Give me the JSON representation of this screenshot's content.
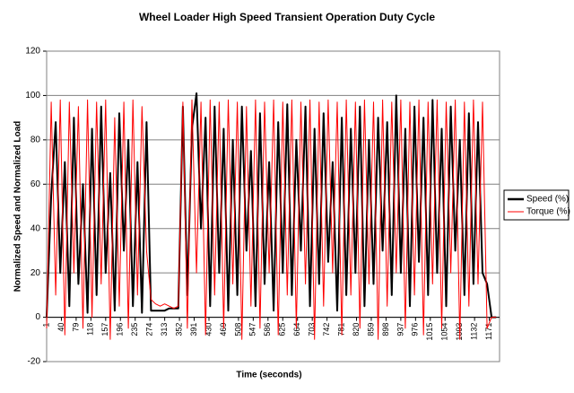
{
  "chart_data": {
    "type": "line",
    "title": "Wheel Loader High Speed Transient Operation Duty Cycle",
    "x_label": "Time (seconds)",
    "y_label": "Normalized Speed and Normalized Load",
    "x": [
      1,
      13,
      25,
      37,
      49,
      61,
      73,
      85,
      97,
      109,
      121,
      133,
      145,
      157,
      169,
      181,
      193,
      205,
      217,
      229,
      241,
      253,
      265,
      277,
      289,
      301,
      313,
      325,
      337,
      349,
      361,
      373,
      385,
      397,
      409,
      421,
      433,
      445,
      457,
      469,
      481,
      493,
      505,
      517,
      529,
      541,
      553,
      565,
      577,
      589,
      601,
      613,
      625,
      637,
      649,
      661,
      673,
      685,
      697,
      709,
      721,
      733,
      745,
      757,
      769,
      781,
      793,
      805,
      817,
      829,
      841,
      853,
      865,
      877,
      889,
      901,
      913,
      925,
      937,
      949,
      961,
      973,
      985,
      997,
      1009,
      1021,
      1033,
      1045,
      1057,
      1069,
      1081,
      1093,
      1105,
      1117,
      1129,
      1141,
      1153,
      1165,
      1177,
      1189
    ],
    "series": [
      {
        "name": "Speed (%)",
        "color": "#000000",
        "values": [
          0,
          55,
          88,
          20,
          70,
          5,
          90,
          15,
          60,
          2,
          85,
          10,
          95,
          20,
          65,
          3,
          92,
          30,
          80,
          5,
          70,
          2,
          88,
          3,
          3,
          3,
          3,
          4,
          4,
          4,
          95,
          10,
          85,
          101,
          40,
          90,
          5,
          95,
          20,
          85,
          3,
          80,
          10,
          95,
          30,
          75,
          5,
          92,
          15,
          70,
          3,
          88,
          20,
          96,
          10,
          80,
          30,
          95,
          5,
          85,
          15,
          92,
          25,
          70,
          3,
          90,
          10,
          85,
          20,
          95,
          5,
          80,
          15,
          90,
          30,
          88,
          10,
          100,
          20,
          85,
          5,
          95,
          25,
          90,
          10,
          98,
          20,
          85,
          5,
          95,
          30,
          80,
          10,
          92,
          15,
          88,
          20,
          15,
          0,
          0
        ]
      },
      {
        "name": "Torque (%)",
        "color": "#ff0000",
        "values": [
          -5,
          97,
          10,
          98,
          -8,
          97,
          20,
          95,
          -5,
          98,
          0,
          97,
          15,
          98,
          -10,
          90,
          5,
          97,
          -5,
          98,
          10,
          95,
          30,
          8,
          6,
          5,
          6,
          5,
          4,
          5,
          97,
          -5,
          98,
          20,
          97,
          -8,
          98,
          10,
          97,
          -5,
          98,
          15,
          97,
          -10,
          95,
          5,
          98,
          -5,
          97,
          20,
          98,
          -8,
          97,
          10,
          98,
          -5,
          97,
          15,
          98,
          -10,
          97,
          5,
          98,
          20,
          97,
          -8,
          98,
          10,
          97,
          -5,
          98,
          15,
          97,
          -10,
          98,
          5,
          97,
          20,
          98,
          -5,
          97,
          10,
          98,
          -8,
          97,
          15,
          98,
          -5,
          97,
          20,
          98,
          -10,
          97,
          5,
          98,
          15,
          97,
          -5,
          0,
          0
        ]
      }
    ],
    "xlim": [
      1,
      1198
    ],
    "xticks": [
      1,
      40,
      79,
      118,
      157,
      196,
      235,
      274,
      313,
      352,
      391,
      430,
      469,
      508,
      547,
      586,
      625,
      664,
      703,
      742,
      781,
      820,
      859,
      898,
      937,
      976,
      1015,
      1054,
      1093,
      1132,
      1171
    ],
    "ylim": [
      -20,
      120
    ],
    "yticks": [
      -20,
      0,
      20,
      40,
      60,
      80,
      100,
      120
    ],
    "grid": true,
    "legend": "right"
  }
}
